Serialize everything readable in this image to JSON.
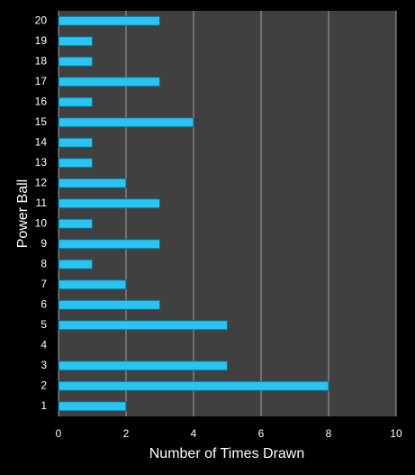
{
  "chart_data": {
    "type": "barh",
    "x_label": "Number of Times Drawn",
    "y_label": "Power Ball",
    "categories": [
      "1",
      "2",
      "3",
      "4",
      "5",
      "6",
      "7",
      "8",
      "9",
      "10",
      "11",
      "12",
      "13",
      "14",
      "15",
      "16",
      "17",
      "18",
      "19",
      "20"
    ],
    "values": [
      2,
      8,
      5,
      0,
      5,
      3,
      2,
      1,
      3,
      1,
      3,
      2,
      1,
      1,
      4,
      1,
      3,
      1,
      1,
      3
    ],
    "color": "#29c4f2",
    "xlim": [
      0,
      10
    ],
    "xticks": [
      0,
      2,
      4,
      6,
      8,
      10
    ],
    "grid": true
  }
}
